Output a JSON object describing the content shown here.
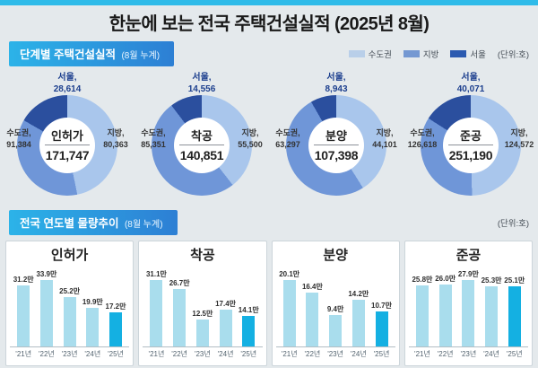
{
  "page": {
    "title": "한눈에 보는 전국 주택건설실적 (2025년 8월)"
  },
  "colors": {
    "accent_strip": "#2fbbe9",
    "legend_sudogwon": "#b9cfe9",
    "legend_jibang": "#7498d2",
    "legend_seoul": "#2b5ab0",
    "donut_sudogwon": "#6f96d8",
    "donut_jibang": "#a9c6ec",
    "donut_seoul": "#2b4f9e",
    "bar": "#a9dded",
    "bar_highlight": "#14b0e2"
  },
  "section1": {
    "title": "단계별 주택건설실적",
    "subtitle": "(8월 누계)",
    "unit_label": "(단위:호)",
    "legend": [
      {
        "label": "수도권"
      },
      {
        "label": "지방"
      },
      {
        "label": "서울"
      }
    ]
  },
  "section2": {
    "title": "전국 연도별 물량추이",
    "subtitle": "(8월 누계)",
    "unit_label": "(단위:호)"
  },
  "chart_data": [
    {
      "type": "pie",
      "title": "인허가",
      "total": 171747,
      "total_label": "171,747",
      "groups": {
        "seoul": {
          "label": "서울,",
          "value": 28614,
          "display": "28,614"
        },
        "sudogwon": {
          "label": "수도권,",
          "value": 91384,
          "display": "91,384"
        },
        "jibang": {
          "label": "지방,",
          "value": 80363,
          "display": "80,363"
        }
      }
    },
    {
      "type": "pie",
      "title": "착공",
      "total": 140851,
      "total_label": "140,851",
      "groups": {
        "seoul": {
          "label": "서울,",
          "value": 14556,
          "display": "14,556"
        },
        "sudogwon": {
          "label": "수도권,",
          "value": 85351,
          "display": "85,351"
        },
        "jibang": {
          "label": "지방,",
          "value": 55500,
          "display": "55,500"
        }
      }
    },
    {
      "type": "pie",
      "title": "분양",
      "total": 107398,
      "total_label": "107,398",
      "groups": {
        "seoul": {
          "label": "서울,",
          "value": 8943,
          "display": "8,943"
        },
        "sudogwon": {
          "label": "수도권,",
          "value": 63297,
          "display": "63,297"
        },
        "jibang": {
          "label": "지방,",
          "value": 44101,
          "display": "44,101"
        }
      }
    },
    {
      "type": "pie",
      "title": "준공",
      "total": 251190,
      "total_label": "251,190",
      "groups": {
        "seoul": {
          "label": "서울,",
          "value": 40071,
          "display": "40,071"
        },
        "sudogwon": {
          "label": "수도권,",
          "value": 126618,
          "display": "126,618"
        },
        "jibang": {
          "label": "지방,",
          "value": 124572,
          "display": "124,572"
        }
      }
    },
    {
      "type": "bar",
      "title": "인허가",
      "categories": [
        "'21년",
        "'22년",
        "'23년",
        "'24년",
        "'25년"
      ],
      "values": [
        31.2,
        33.9,
        25.2,
        19.9,
        17.2
      ],
      "labels": [
        "31.2만",
        "33.9만",
        "25.2만",
        "19.9만",
        "17.2만"
      ],
      "ylim": [
        0,
        36
      ],
      "highlight_index": 4
    },
    {
      "type": "bar",
      "title": "착공",
      "categories": [
        "'21년",
        "'22년",
        "'23년",
        "'24년",
        "'25년"
      ],
      "values": [
        31.1,
        26.7,
        12.5,
        17.4,
        14.1
      ],
      "labels": [
        "31.1만",
        "26.7만",
        "12.5만",
        "17.4만",
        "14.1만"
      ],
      "ylim": [
        0,
        36
      ],
      "highlight_index": 4
    },
    {
      "type": "bar",
      "title": "분양",
      "categories": [
        "'21년",
        "'22년",
        "'23년",
        "'24년",
        "'25년"
      ],
      "values": [
        20.1,
        16.4,
        9.4,
        14.2,
        10.7
      ],
      "labels": [
        "20.1만",
        "16.4만",
        "9.4만",
        "14.2만",
        "10.7만"
      ],
      "ylim": [
        0,
        36
      ],
      "highlight_index": 4
    },
    {
      "type": "bar",
      "title": "준공",
      "categories": [
        "'21년",
        "'22년",
        "'23년",
        "'24년",
        "'25년"
      ],
      "values": [
        25.8,
        26.0,
        27.9,
        25.3,
        25.1
      ],
      "labels": [
        "25.8만",
        "26.0만",
        "27.9만",
        "25.3만",
        "25.1만"
      ],
      "ylim": [
        0,
        36
      ],
      "highlight_index": 4
    }
  ]
}
